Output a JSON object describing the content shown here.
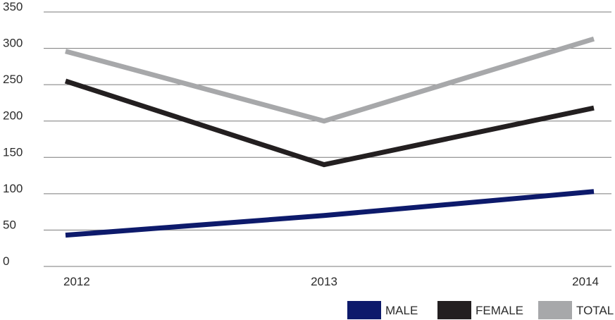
{
  "chart_data": {
    "type": "line",
    "categories": [
      "2012",
      "2013",
      "2014"
    ],
    "y_ticks": [
      "0",
      "50",
      "100",
      "150",
      "200",
      "250",
      "300",
      "350"
    ],
    "ylim": [
      0,
      350
    ],
    "grid": true,
    "legend_position": "bottom-right",
    "series": [
      {
        "name": "MALE",
        "values": [
          43,
          70,
          103
        ],
        "color": "#0d1a6b"
      },
      {
        "name": "FEMALE",
        "values": [
          255,
          140,
          218
        ],
        "color": "#231f20"
      },
      {
        "name": "TOTAL",
        "values": [
          296,
          200,
          313
        ],
        "color": "#a7a8aa"
      }
    ]
  }
}
